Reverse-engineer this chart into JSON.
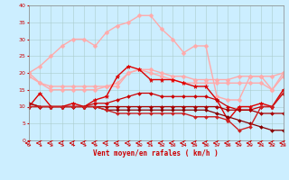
{
  "xlabel": "Vent moyen/en rafales ( km/h )",
  "xlim": [
    0,
    23
  ],
  "ylim": [
    0,
    40
  ],
  "yticks": [
    0,
    5,
    10,
    15,
    20,
    25,
    30,
    35,
    40
  ],
  "xticks": [
    0,
    1,
    2,
    3,
    4,
    5,
    6,
    7,
    8,
    9,
    10,
    11,
    12,
    13,
    14,
    15,
    16,
    17,
    18,
    19,
    20,
    21,
    22,
    23
  ],
  "bg_color": "#cceeff",
  "grid_color": "#aacccc",
  "series": [
    {
      "y": [
        20,
        22,
        25,
        28,
        30,
        30,
        28,
        32,
        34,
        35,
        37,
        37,
        33,
        30,
        26,
        28,
        28,
        13,
        12,
        12,
        19,
        19,
        15,
        19
      ],
      "color": "#ffaaaa",
      "marker": "D",
      "markersize": 2.5,
      "linewidth": 1.0
    },
    {
      "y": [
        20,
        17,
        16,
        16,
        16,
        16,
        16,
        16,
        16,
        20,
        21,
        21,
        20,
        19,
        19,
        18,
        18,
        18,
        18,
        19,
        19,
        19,
        19,
        20
      ],
      "color": "#ffaaaa",
      "marker": "D",
      "markersize": 2.5,
      "linewidth": 1.0
    },
    {
      "y": [
        19,
        17,
        15,
        15,
        15,
        15,
        15,
        16,
        17,
        20,
        21,
        20,
        19,
        18,
        17,
        17,
        17,
        17,
        17,
        17,
        17,
        17,
        15,
        20
      ],
      "color": "#ffaaaa",
      "marker": "D",
      "markersize": 2.5,
      "linewidth": 1.0
    },
    {
      "y": [
        10,
        14,
        10,
        10,
        11,
        10,
        12,
        13,
        19,
        22,
        21,
        18,
        18,
        18,
        17,
        16,
        16,
        12,
        6,
        10,
        10,
        11,
        10,
        15
      ],
      "color": "#dd0000",
      "marker": "*",
      "markersize": 3.5,
      "linewidth": 1.0
    },
    {
      "y": [
        11,
        10,
        10,
        10,
        10,
        10,
        11,
        11,
        12,
        13,
        14,
        14,
        13,
        13,
        13,
        13,
        13,
        12,
        10,
        9,
        9,
        10,
        10,
        14
      ],
      "color": "#cc0000",
      "marker": "D",
      "markersize": 2,
      "linewidth": 0.9
    },
    {
      "y": [
        11,
        10,
        10,
        10,
        10,
        10,
        10,
        10,
        10,
        10,
        10,
        10,
        10,
        10,
        10,
        10,
        10,
        10,
        9,
        9,
        9,
        8,
        8,
        8
      ],
      "color": "#aa0000",
      "marker": "D",
      "markersize": 2,
      "linewidth": 0.9
    },
    {
      "y": [
        10,
        10,
        10,
        10,
        10,
        10,
        10,
        9,
        9,
        9,
        9,
        9,
        9,
        9,
        9,
        9,
        9,
        8,
        7,
        6,
        5,
        4,
        3,
        3
      ],
      "color": "#880000",
      "marker": "D",
      "markersize": 2,
      "linewidth": 0.9
    },
    {
      "y": [
        10,
        10,
        10,
        10,
        10,
        10,
        10,
        9,
        8,
        8,
        8,
        8,
        8,
        8,
        8,
        7,
        7,
        7,
        6,
        3,
        4,
        10,
        10,
        14
      ],
      "color": "#cc2222",
      "marker": "D",
      "markersize": 2,
      "linewidth": 1.0
    }
  ]
}
